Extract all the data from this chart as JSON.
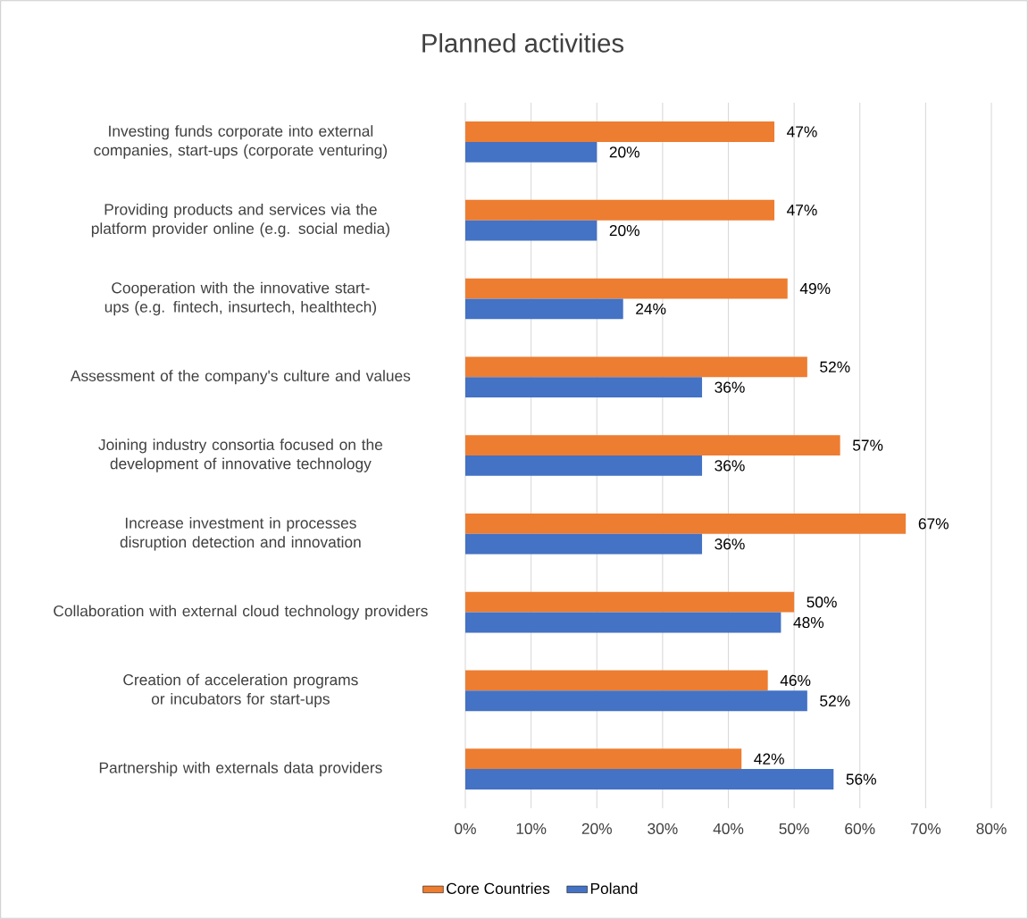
{
  "chart_data": {
    "type": "bar",
    "orientation": "horizontal",
    "title": "Planned activities",
    "categories": [
      "Investing funds corporate into external companies, start-ups (corporate venturing)",
      "Providing products and services via the platform provider online (e.g. social media)",
      "Cooperation with the innovative start-ups (e.g. fintech, insurtech, healthtech)",
      "Assessment of the company's culture and values",
      "Joining industry consortia focused on the development of innovative technology",
      "Increase investment in processes disruption detection and innovation",
      "Collaboration with external cloud technology providers",
      "Creation of acceleration programs or incubators for start-ups",
      "Partnership with externals data providers"
    ],
    "series": [
      {
        "name": "Core Countries",
        "color": "#ed7d31",
        "values": [
          47,
          47,
          49,
          52,
          57,
          67,
          50,
          46,
          42
        ],
        "value_labels": [
          "47%",
          "47%",
          "49%",
          "52%",
          "57%",
          "67%",
          "50%",
          "46%",
          "42%"
        ]
      },
      {
        "name": "Poland",
        "color": "#4472c4",
        "values": [
          20,
          20,
          24,
          36,
          36,
          36,
          48,
          52,
          56
        ],
        "value_labels": [
          "20%",
          "20%",
          "24%",
          "36%",
          "36%",
          "36%",
          "48%",
          "52%",
          "56%"
        ]
      }
    ],
    "xlim": [
      0,
      80
    ],
    "xticks": [
      {
        "value": 0,
        "label": "0%"
      },
      {
        "value": 10,
        "label": "10%"
      },
      {
        "value": 20,
        "label": "20%"
      },
      {
        "value": 30,
        "label": "30%"
      },
      {
        "value": 40,
        "label": "40%"
      },
      {
        "value": 50,
        "label": "50%"
      },
      {
        "value": 60,
        "label": "60%"
      },
      {
        "value": 70,
        "label": "70%"
      },
      {
        "value": 80,
        "label": "80%"
      }
    ],
    "grid": "x",
    "legend": "bottom"
  }
}
